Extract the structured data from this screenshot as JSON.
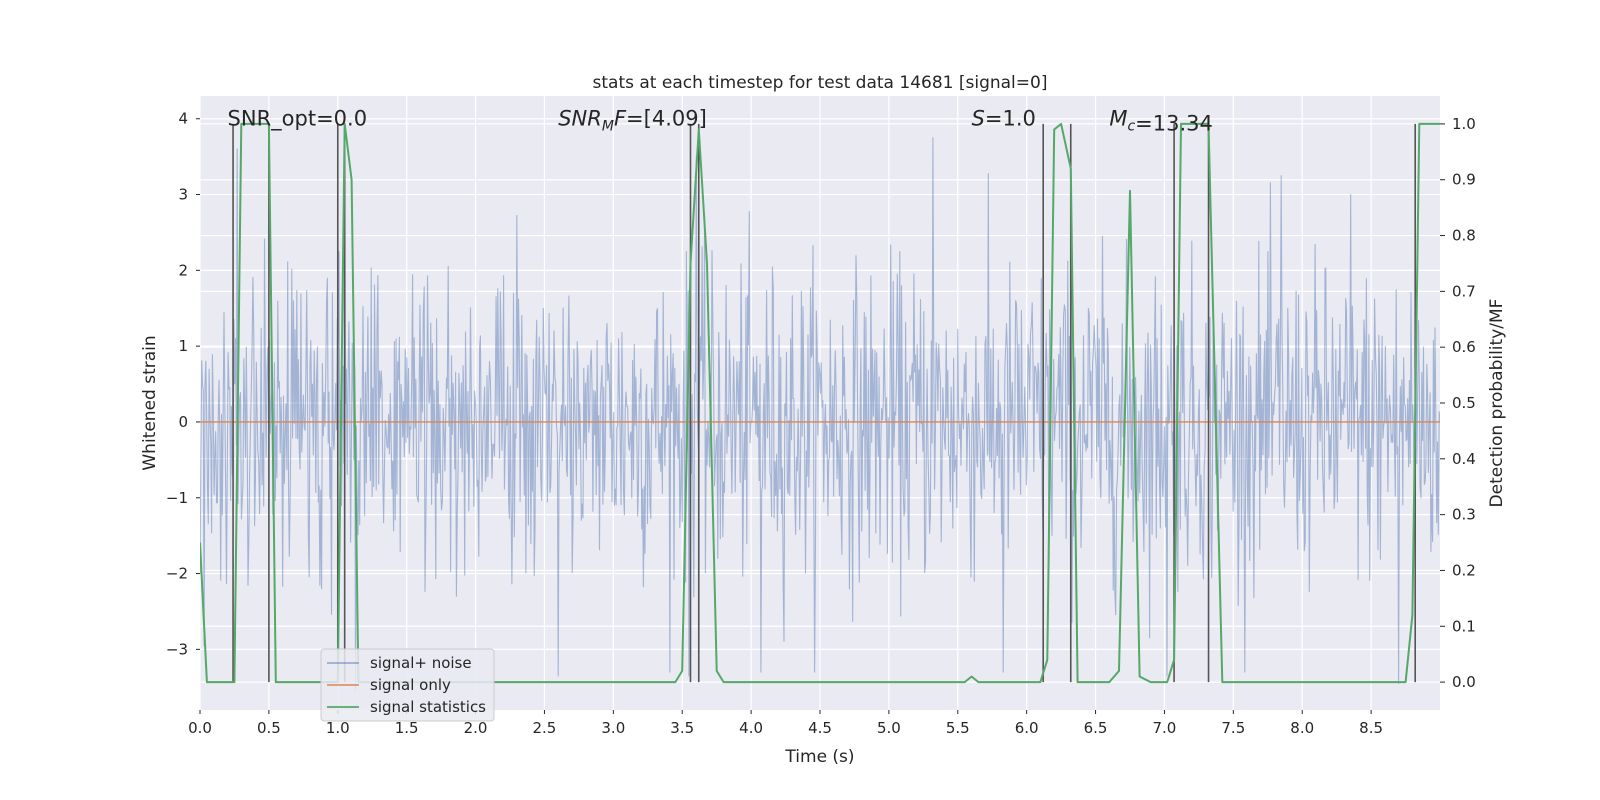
{
  "title": "stats at each timestep for test data 14681 [signal=0]",
  "colors": {
    "plot_background": "#eaeaf2",
    "grid": "#ffffff",
    "noise": "#4c72b0",
    "signal_only": "#dd8452",
    "statistics": "#55a868",
    "vertical_markers": "#555555"
  },
  "chart_data": {
    "type": "line",
    "title": "stats at each timestep for test data 14681 [signal=0]",
    "xlabel": "Time (s)",
    "ylabel": "Whitened strain",
    "y2label": "Detection probability/MF",
    "xlim": [
      0.0,
      9.0
    ],
    "ylim": [
      -3.8,
      4.3
    ],
    "y2lim": [
      -0.05,
      1.05
    ],
    "xticks": [
      0.0,
      0.5,
      1.0,
      1.5,
      2.0,
      2.5,
      3.0,
      3.5,
      4.0,
      4.5,
      5.0,
      5.5,
      6.0,
      6.5,
      7.0,
      7.5,
      8.0,
      8.5
    ],
    "xtick_labels": [
      "0.0",
      "0.5",
      "1.0",
      "1.5",
      "2.0",
      "2.5",
      "3.0",
      "3.5",
      "4.0",
      "4.5",
      "5.0",
      "5.5",
      "6.0",
      "6.5",
      "7.0",
      "7.5",
      "8.0",
      "8.5"
    ],
    "yticks": [
      -3,
      -2,
      -1,
      0,
      1,
      2,
      3,
      4
    ],
    "ytick_labels": [
      "−3",
      "−2",
      "−1",
      "0",
      "1",
      "2",
      "3",
      "4"
    ],
    "y2ticks": [
      0.0,
      0.1,
      0.2,
      0.3,
      0.4,
      0.5,
      0.6,
      0.7,
      0.8,
      0.9,
      1.0
    ],
    "y2tick_labels": [
      "0.0",
      "0.1",
      "0.2",
      "0.3",
      "0.4",
      "0.5",
      "0.6",
      "0.7",
      "0.8",
      "0.9",
      "1.0"
    ],
    "grid": true,
    "legend_position": "lower-left",
    "annotations": [
      {
        "id": "snr-opt",
        "text": "SNR_opt=0.0",
        "x": 0.2,
        "y": 4.0
      },
      {
        "id": "snr-mf",
        "text": "=[4.09]",
        "x": 2.6,
        "y": 4.0,
        "math_base": "SNR",
        "math_sub": "M",
        "math_tail": "F"
      },
      {
        "id": "stat-s",
        "text": "=1.0",
        "x": 5.6,
        "y": 4.0,
        "math_base": "S"
      },
      {
        "id": "chirp-mass",
        "text": "=13.34",
        "x": 6.6,
        "y": 4.0,
        "math_base": "M",
        "math_sub": "c"
      }
    ],
    "series": [
      {
        "name": "signal+ noise",
        "axis": "left",
        "kind": "noise",
        "x_start": 0.0,
        "x_end": 9.0,
        "sample_count": 1500,
        "std": 1.0,
        "extreme_peaks": [
          {
            "x": 0.27,
            "y": 3.6
          },
          {
            "x": 1.05,
            "y": 3.45
          },
          {
            "x": 5.32,
            "y": 3.75
          },
          {
            "x": 3.6,
            "y": 3.5
          },
          {
            "x": 1.13,
            "y": -3.55
          },
          {
            "x": 2.6,
            "y": -3.35
          },
          {
            "x": 3.55,
            "y": -3.35
          },
          {
            "x": 4.07,
            "y": -3.3
          },
          {
            "x": 5.83,
            "y": -3.3
          },
          {
            "x": 8.7,
            "y": -3.45
          },
          {
            "x": 0.03,
            "y": -2.95
          },
          {
            "x": 7.02,
            "y": -3.35
          },
          {
            "x": 7.85,
            "y": 3.25
          },
          {
            "x": 8.35,
            "y": 3.0
          }
        ]
      },
      {
        "name": "signal only",
        "axis": "left",
        "kind": "line",
        "x": [
          0.0,
          9.0
        ],
        "y": [
          0.0,
          0.0
        ]
      },
      {
        "name": "signal statistics",
        "axis": "right",
        "kind": "line",
        "x": [
          0.0,
          0.05,
          0.25,
          0.3,
          0.5,
          0.55,
          1.0,
          1.05,
          1.1,
          1.15,
          1.2,
          3.45,
          3.5,
          3.56,
          3.62,
          3.68,
          3.75,
          3.8,
          5.55,
          5.6,
          5.65,
          6.1,
          6.15,
          6.2,
          6.25,
          6.32,
          6.37,
          6.6,
          6.67,
          6.75,
          6.82,
          6.9,
          7.02,
          7.07,
          7.12,
          7.32,
          7.42,
          8.75,
          8.8,
          8.85,
          8.9,
          9.0
        ],
        "y": [
          0.25,
          0.0,
          0.0,
          1.0,
          1.0,
          0.0,
          0.0,
          1.0,
          0.9,
          0.0,
          0.0,
          0.0,
          0.02,
          0.75,
          0.99,
          0.75,
          0.02,
          0.0,
          0.0,
          0.01,
          0.0,
          0.0,
          0.04,
          0.99,
          1.0,
          0.92,
          0.0,
          0.0,
          0.02,
          0.88,
          0.01,
          0.0,
          0.0,
          0.04,
          1.0,
          1.0,
          0.0,
          0.0,
          0.12,
          1.0,
          1.0,
          1.0
        ]
      }
    ],
    "vertical_lines": [
      0.24,
      0.5,
      1.0,
      1.05,
      3.56,
      3.62,
      6.12,
      6.32,
      7.07,
      7.32,
      8.82
    ]
  }
}
